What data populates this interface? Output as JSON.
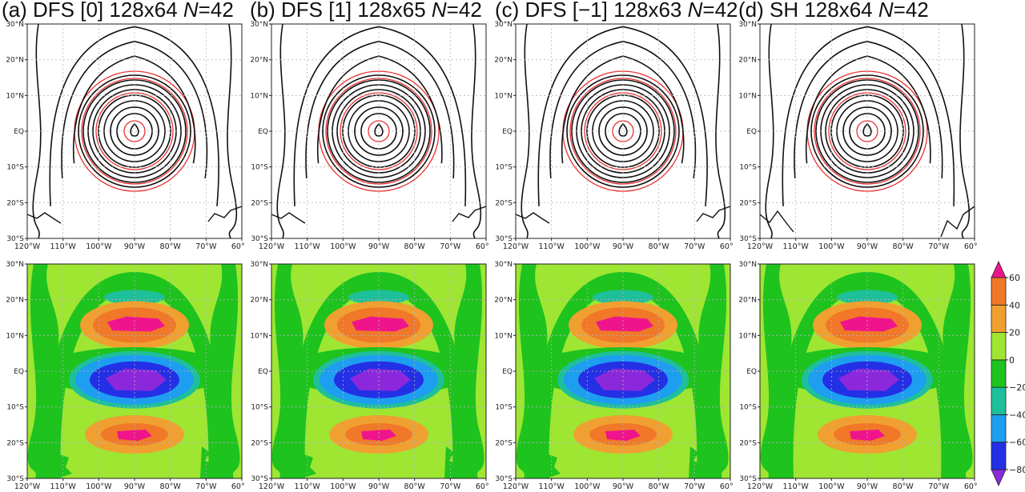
{
  "panels": [
    {
      "label": "(a) DFS [0] 128x64 ",
      "n_symbol": "N",
      "n_value": "=42"
    },
    {
      "label": "(b) DFS [1] 128x65 ",
      "n_symbol": "N",
      "n_value": "=42"
    },
    {
      "label": "(c) DFS [−1] 128x63 ",
      "n_symbol": "N",
      "n_value": "=42"
    },
    {
      "label": "(d) SH 128x64 ",
      "n_symbol": "N",
      "n_value": "=42"
    }
  ],
  "lat_labels": [
    "30°N",
    "20°N",
    "10°N",
    "EQ",
    "10°S",
    "20°S",
    "30°S"
  ],
  "lon_labels": [
    "120°W",
    "110°W",
    "100°W",
    "90°W",
    "80°W",
    "70°W",
    "60°W"
  ],
  "colorbar": {
    "ticks": [
      "60",
      "40",
      "20",
      "0",
      "−20",
      "−40",
      "−60",
      "−80"
    ],
    "colors": [
      "#8c28dc",
      "#2330e6",
      "#1e9ef0",
      "#1ebf9b",
      "#1ec31e",
      "#9ee632",
      "#f0a030",
      "#f07828",
      "#f0148c"
    ]
  },
  "colors": {
    "contour": "#111111",
    "reference_contour": "#e83030",
    "grid": "#b5b5b5"
  }
}
